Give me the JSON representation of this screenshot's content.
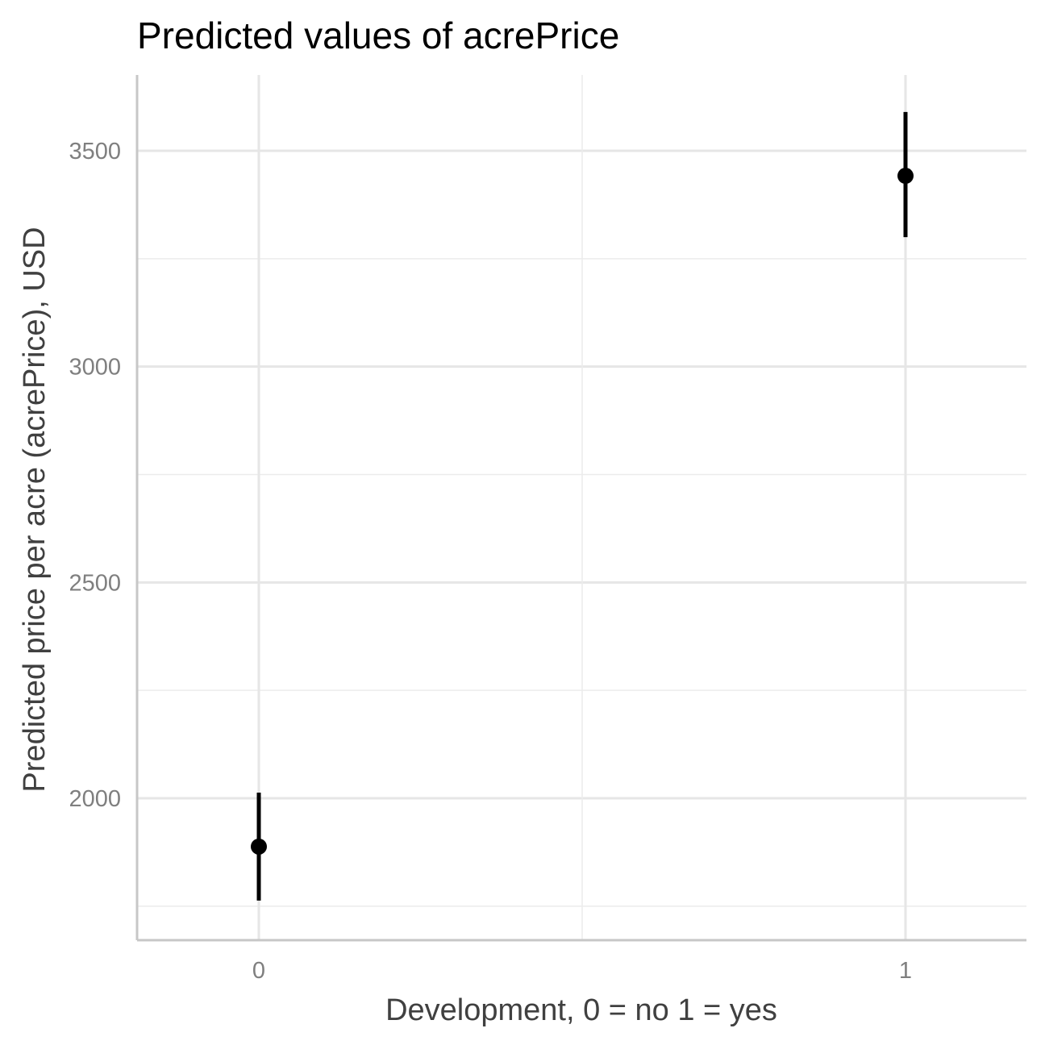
{
  "chart_data": {
    "type": "scatter",
    "title": "Predicted values of acrePrice",
    "xlabel": "Development, 0 = no 1 = yes",
    "ylabel": "Predicted price per acre (acrePrice), USD",
    "x_categories": [
      "0",
      "1"
    ],
    "points": [
      {
        "x": "0",
        "y": 1888,
        "ci_low": 1763,
        "ci_high": 2013
      },
      {
        "x": "1",
        "y": 3442,
        "ci_low": 3300,
        "ci_high": 3590
      }
    ],
    "y_ticks": [
      2000,
      2500,
      3000,
      3500
    ],
    "y_tick_labels": [
      "2000",
      "2500",
      "3000",
      "3500"
    ],
    "ylim": [
      1720,
      3680
    ],
    "grid": true,
    "legend": "none",
    "colors": {
      "point": "#000000",
      "errorbar": "#000000",
      "grid": "#e6e6e6",
      "axis": "#c7c7c7",
      "tick_label": "#7f7f7f"
    }
  }
}
